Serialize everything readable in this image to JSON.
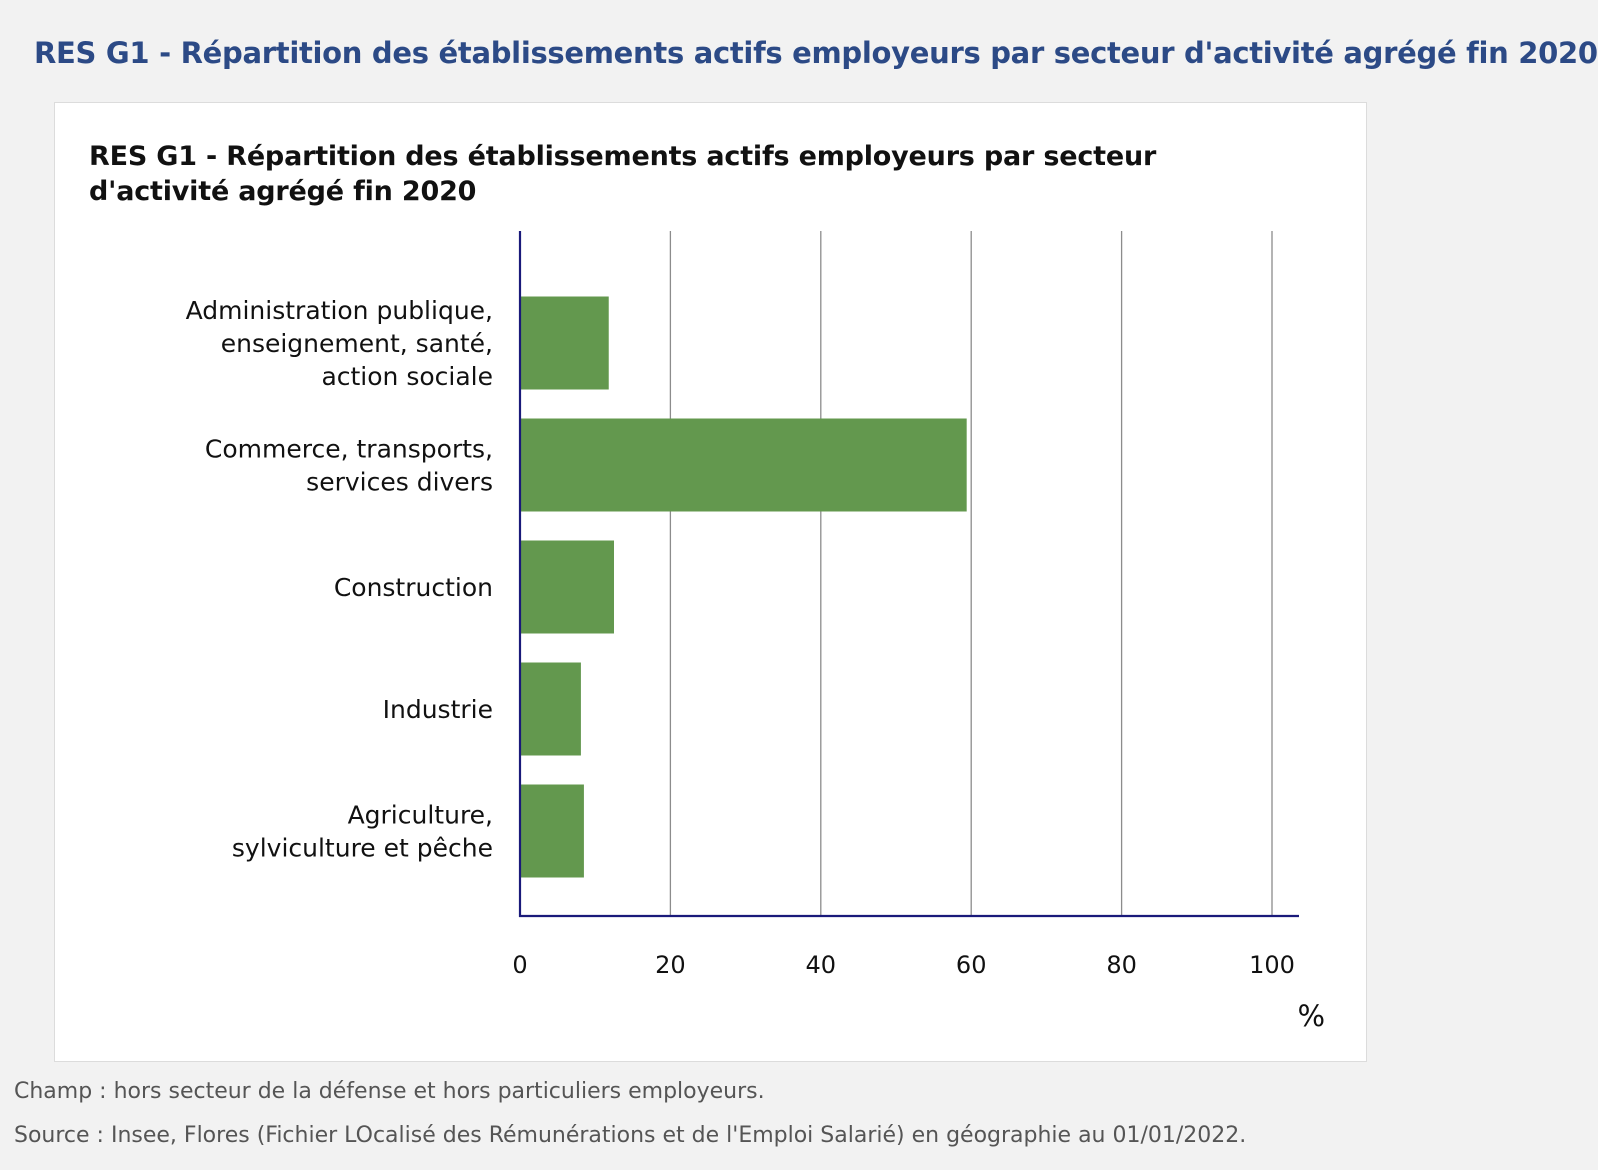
{
  "page": {
    "heading": "RES G1 - Répartition des établissements actifs employeurs par secteur d'activité agrégé fin 2020"
  },
  "chart_data": {
    "type": "bar",
    "orientation": "horizontal",
    "title": "RES G1 - Répartition des établissements actifs employeurs par secteur d'activité agrégé fin 2020",
    "categories": [
      [
        "Administration publique,",
        "enseignement, santé,",
        "action sociale"
      ],
      [
        "Commerce, transports,",
        "services divers"
      ],
      [
        "Construction"
      ],
      [
        "Industrie"
      ],
      [
        "Agriculture,",
        "sylviculture et pêche"
      ]
    ],
    "values": [
      11.8,
      59.4,
      12.5,
      8.1,
      8.5
    ],
    "xlim": [
      0,
      100
    ],
    "xticks": [
      "0",
      "20",
      "40",
      "60",
      "80",
      "100"
    ],
    "xlabel": "%",
    "grid": true,
    "bar_color": "#63984e",
    "axis_color": "#1a1a7a",
    "grid_color": "#8c8c8c"
  },
  "footnotes": {
    "champ": "Champ : hors secteur de la défense et hors particuliers employeurs.",
    "source": "Source : Insee, Flores (Fichier LOcalisé des Rémunérations et de l'Emploi Salarié) en géographie au 01/01/2022."
  }
}
